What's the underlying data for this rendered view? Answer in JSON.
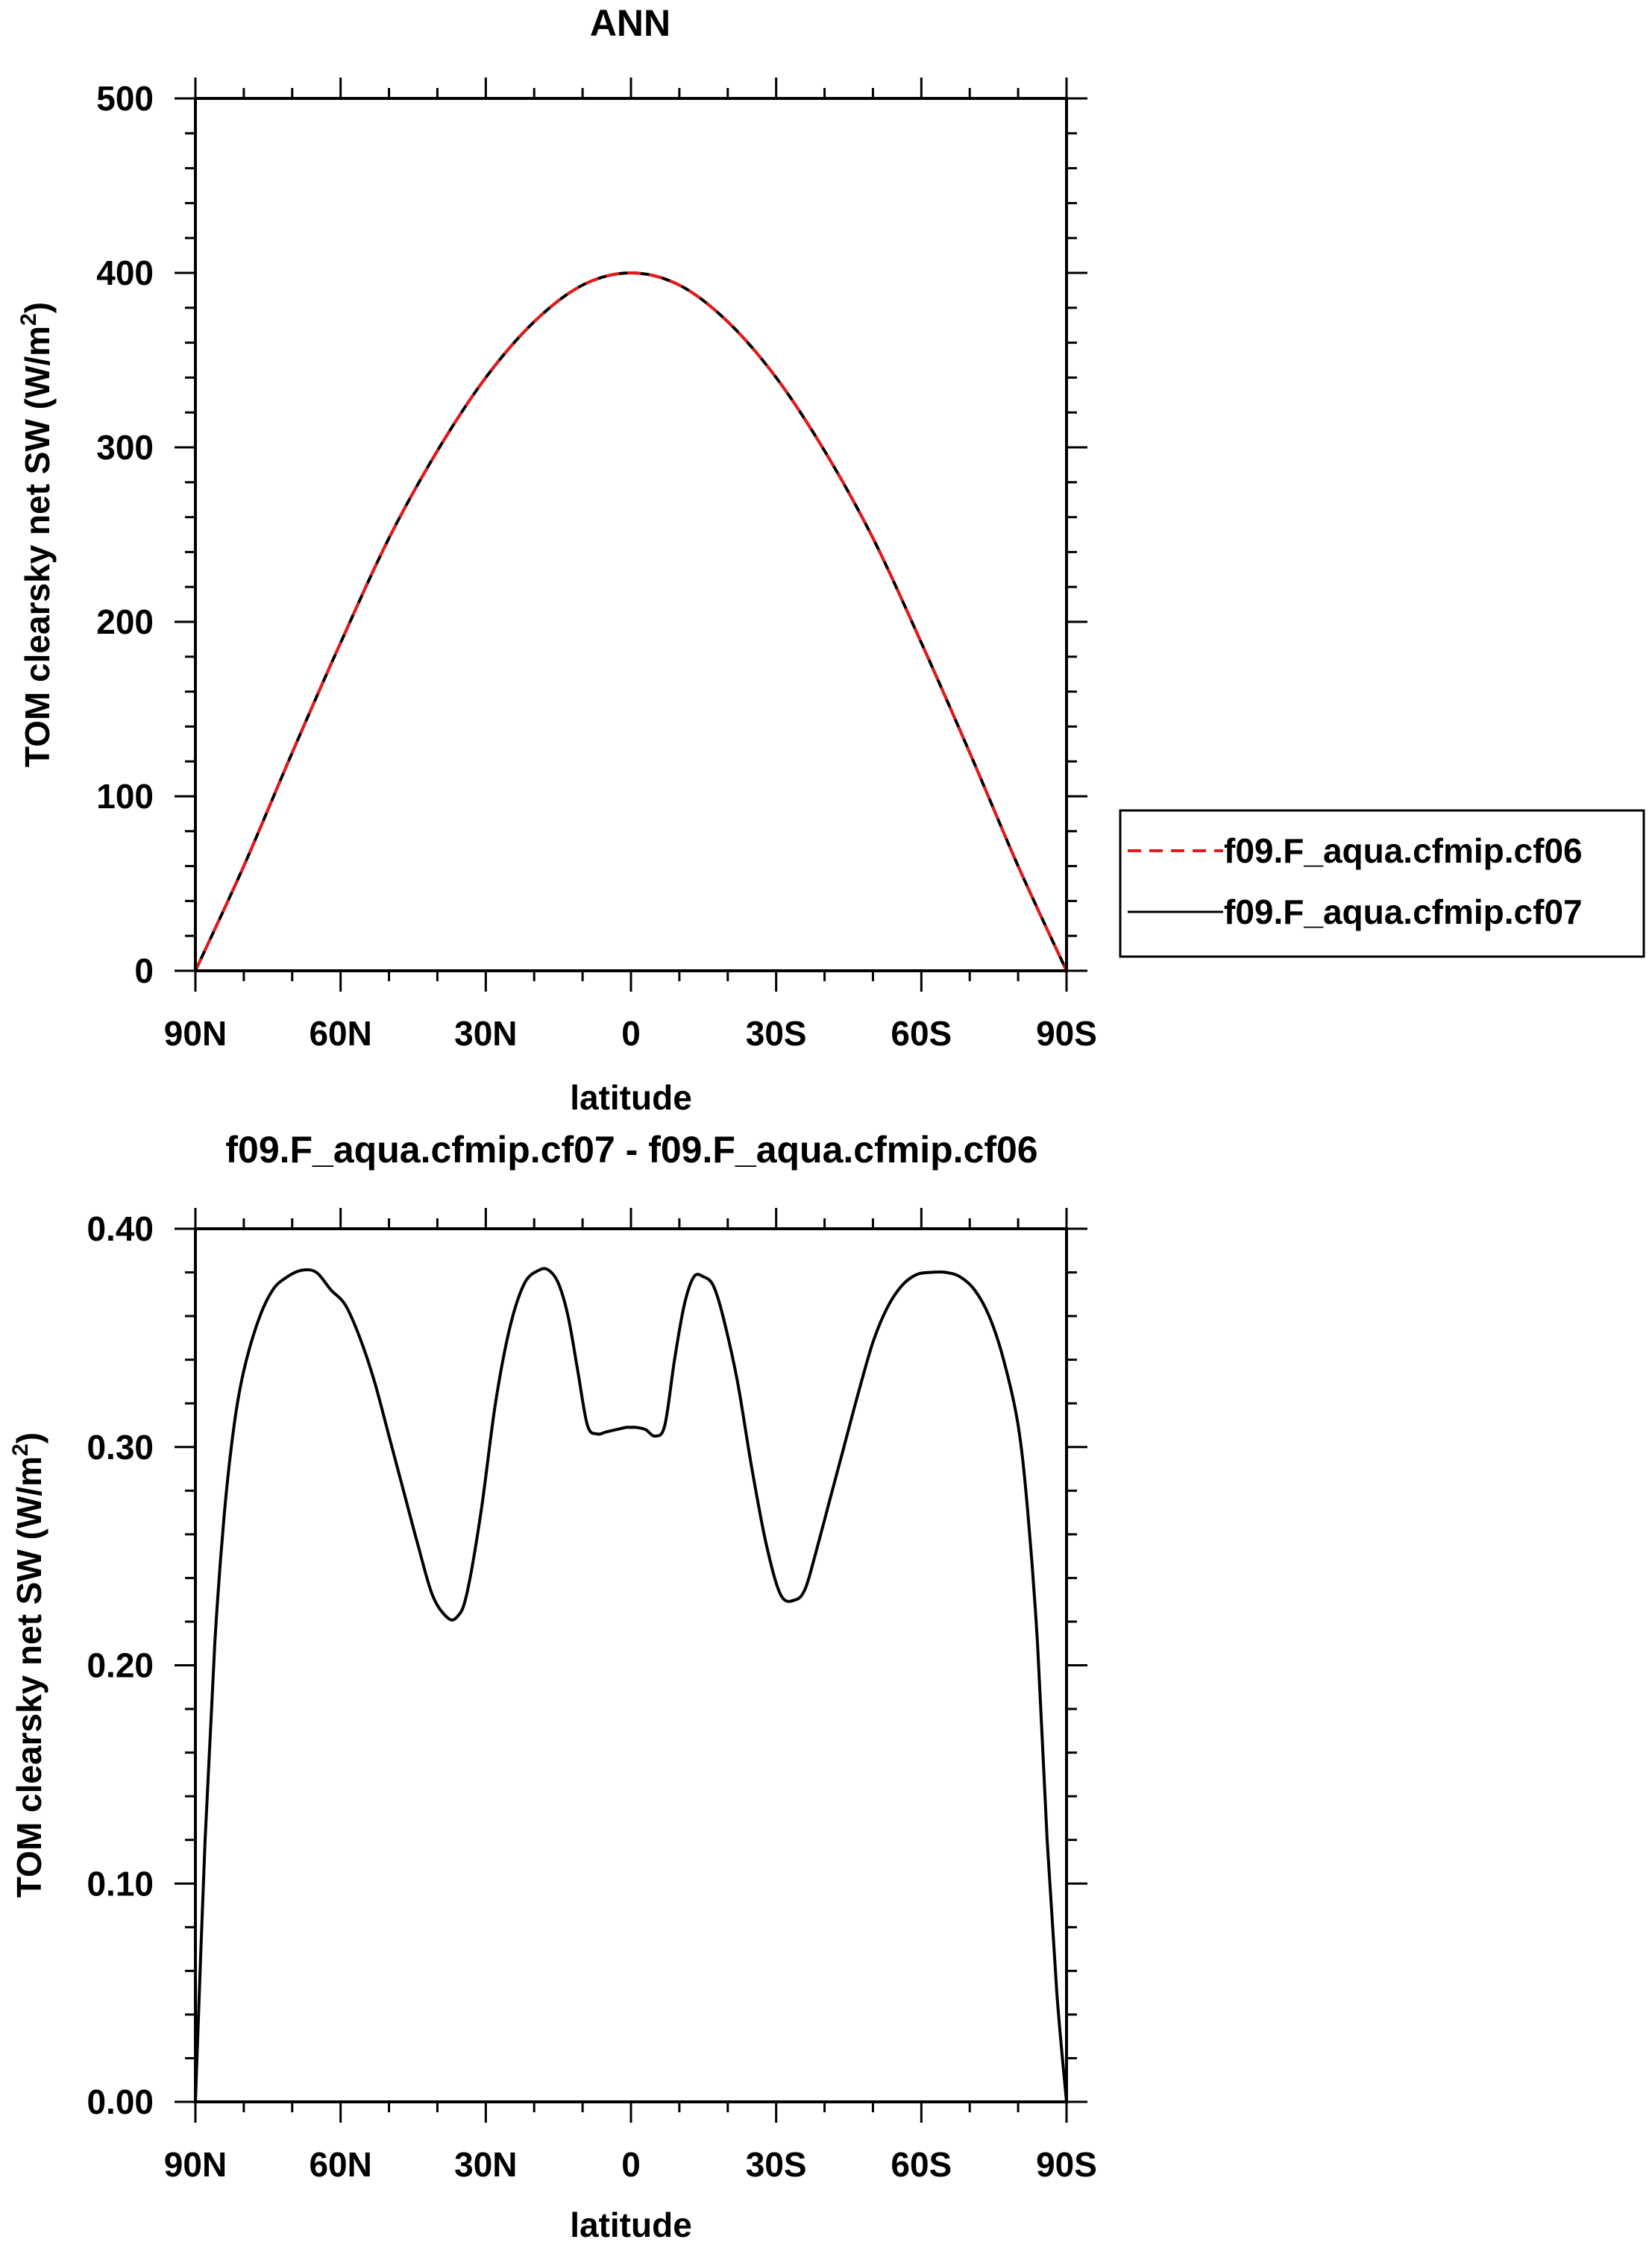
{
  "chart_data": [
    {
      "type": "line",
      "title": "ANN",
      "xlabel": "latitude",
      "ylabel": "TOM clearsky net SW (W/m",
      "ylabel_sup": "2",
      "ylabel_close": ")",
      "xlim": [
        -90,
        90
      ],
      "ylim": [
        0,
        500
      ],
      "x_tick_values": [
        -90,
        -60,
        -30,
        0,
        30,
        60,
        90
      ],
      "x_tick_labels": [
        "90N",
        "60N",
        "30N",
        "0",
        "30S",
        "60S",
        "90S"
      ],
      "y_tick_values": [
        0,
        100,
        200,
        300,
        400,
        500
      ],
      "y_tick_labels": [
        "0",
        "100",
        "200",
        "300",
        "400",
        "500"
      ],
      "grid": false,
      "legend": {
        "position": "right",
        "entries": [
          "f09.F_aqua.cfmip.cf06",
          "f09.F_aqua.cfmip.cf07"
        ]
      },
      "series": [
        {
          "name": "f09.F_aqua.cfmip.cf06",
          "color": "#e41a1c",
          "dash": "dashed",
          "x": [
            -90,
            -80,
            -70,
            -60,
            -50,
            -40,
            -30,
            -20,
            -10,
            0,
            10,
            20,
            30,
            40,
            50,
            60,
            70,
            80,
            90
          ],
          "values": [
            0,
            60,
            125,
            188,
            248,
            298,
            340,
            372,
            393,
            400,
            393,
            372,
            340,
            298,
            248,
            188,
            125,
            60,
            0
          ]
        },
        {
          "name": "f09.F_aqua.cfmip.cf07",
          "color": "#000000",
          "dash": "solid",
          "x": [
            -90,
            -80,
            -70,
            -60,
            -50,
            -40,
            -30,
            -20,
            -10,
            0,
            10,
            20,
            30,
            40,
            50,
            60,
            70,
            80,
            90
          ],
          "values": [
            0,
            60,
            125,
            188,
            248,
            298,
            340,
            372,
            393,
            400,
            393,
            372,
            340,
            298,
            248,
            188,
            125,
            60,
            0
          ]
        }
      ]
    },
    {
      "type": "line",
      "title": "f09.F_aqua.cfmip.cf07 - f09.F_aqua.cfmip.cf06",
      "xlabel": "latitude",
      "ylabel": "TOM clearsky net SW (W/m",
      "ylabel_sup": "2",
      "ylabel_close": ")",
      "xlim": [
        -90,
        90
      ],
      "ylim": [
        0,
        0.4
      ],
      "x_tick_values": [
        -90,
        -60,
        -30,
        0,
        30,
        60,
        90
      ],
      "x_tick_labels": [
        "90N",
        "60N",
        "30N",
        "0",
        "30S",
        "60S",
        "90S"
      ],
      "y_tick_values": [
        0,
        0.1,
        0.2,
        0.3,
        0.4
      ],
      "y_tick_labels": [
        "0.00",
        "0.10",
        "0.20",
        "0.30",
        "0.40"
      ],
      "grid": false,
      "series": [
        {
          "color": "#000000",
          "dash": "solid",
          "x": [
            -90,
            -88,
            -86,
            -84,
            -82,
            -80,
            -77,
            -74,
            -71,
            -68,
            -65,
            -62,
            -59,
            -56,
            -53,
            -50,
            -47,
            -44,
            -41,
            -38,
            -36,
            -34,
            -31,
            -28,
            -25,
            -22,
            -19,
            -17,
            -15,
            -13,
            -11,
            -9,
            -7,
            -5,
            -3,
            -1,
            0,
            1,
            3,
            5,
            7,
            9,
            11,
            13,
            15,
            17,
            19,
            22,
            25,
            28,
            31,
            34,
            36,
            38,
            41,
            44,
            47,
            50,
            53,
            56,
            59,
            62,
            65,
            68,
            71,
            74,
            77,
            80,
            82,
            84,
            86,
            88,
            90
          ],
          "values": [
            0,
            0.12,
            0.21,
            0.27,
            0.31,
            0.335,
            0.358,
            0.372,
            0.378,
            0.381,
            0.38,
            0.372,
            0.365,
            0.35,
            0.33,
            0.305,
            0.28,
            0.255,
            0.232,
            0.222,
            0.222,
            0.232,
            0.27,
            0.32,
            0.355,
            0.375,
            0.381,
            0.381,
            0.375,
            0.36,
            0.335,
            0.31,
            0.306,
            0.307,
            0.308,
            0.309,
            0.309,
            0.309,
            0.308,
            0.305,
            0.31,
            0.34,
            0.365,
            0.378,
            0.378,
            0.374,
            0.36,
            0.33,
            0.29,
            0.255,
            0.232,
            0.23,
            0.235,
            0.25,
            0.275,
            0.3,
            0.325,
            0.348,
            0.364,
            0.374,
            0.379,
            0.38,
            0.38,
            0.378,
            0.372,
            0.36,
            0.34,
            0.31,
            0.27,
            0.21,
            0.12,
            0.05,
            0
          ]
        }
      ]
    }
  ]
}
